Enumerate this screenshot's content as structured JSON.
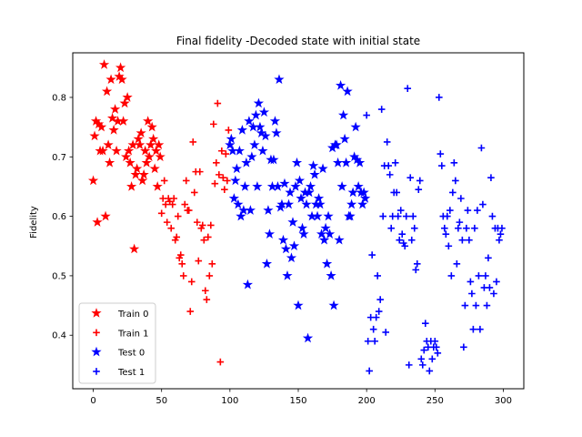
{
  "chart_data": {
    "type": "scatter",
    "title": "Final fidelity -Decoded state with initial state",
    "xlabel": "",
    "ylabel": "Fidelity",
    "xlim": [
      -15,
      315
    ],
    "ylim": [
      0.31,
      0.875
    ],
    "xticks": [
      0,
      50,
      100,
      150,
      200,
      250,
      300
    ],
    "yticks": [
      0.4,
      0.5,
      0.6,
      0.7,
      0.8
    ],
    "xtick_labels": [
      "0",
      "50",
      "100",
      "150",
      "200",
      "250",
      "300"
    ],
    "ytick_labels": [
      "0.4",
      "0.5",
      "0.6",
      "0.7",
      "0.8"
    ],
    "legend_position": "lower-left",
    "series": [
      {
        "name": "Train 0",
        "marker": "star",
        "color": "#ff0000",
        "points": [
          [
            0,
            0.66
          ],
          [
            1,
            0.735
          ],
          [
            2,
            0.76
          ],
          [
            3,
            0.59
          ],
          [
            4,
            0.755
          ],
          [
            5,
            0.71
          ],
          [
            6,
            0.75
          ],
          [
            7,
            0.71
          ],
          [
            8,
            0.855
          ],
          [
            9,
            0.6
          ],
          [
            10,
            0.81
          ],
          [
            11,
            0.72
          ],
          [
            12,
            0.69
          ],
          [
            13,
            0.83
          ],
          [
            14,
            0.765
          ],
          [
            15,
            0.745
          ],
          [
            16,
            0.78
          ],
          [
            17,
            0.71
          ],
          [
            18,
            0.76
          ],
          [
            19,
            0.835
          ],
          [
            20,
            0.85
          ],
          [
            21,
            0.83
          ],
          [
            22,
            0.76
          ],
          [
            23,
            0.79
          ],
          [
            24,
            0.7
          ],
          [
            25,
            0.8
          ],
          [
            26,
            0.71
          ],
          [
            27,
            0.69
          ],
          [
            28,
            0.65
          ],
          [
            29,
            0.72
          ],
          [
            30,
            0.545
          ],
          [
            31,
            0.67
          ],
          [
            32,
            0.68
          ],
          [
            33,
            0.73
          ],
          [
            34,
            0.72
          ],
          [
            35,
            0.74
          ],
          [
            36,
            0.66
          ],
          [
            37,
            0.67
          ],
          [
            38,
            0.71
          ],
          [
            39,
            0.69
          ],
          [
            40,
            0.76
          ],
          [
            41,
            0.7
          ],
          [
            42,
            0.72
          ],
          [
            43,
            0.75
          ],
          [
            44,
            0.73
          ],
          [
            45,
            0.68
          ],
          [
            46,
            0.71
          ],
          [
            47,
            0.65
          ],
          [
            48,
            0.72
          ],
          [
            49,
            0.7
          ]
        ]
      },
      {
        "name": "Train 1",
        "marker": "plus",
        "color": "#ff0000",
        "points": [
          [
            50,
            0.605
          ],
          [
            51,
            0.63
          ],
          [
            52,
            0.66
          ],
          [
            53,
            0.62
          ],
          [
            54,
            0.59
          ],
          [
            55,
            0.63
          ],
          [
            56,
            0.625
          ],
          [
            57,
            0.58
          ],
          [
            58,
            0.62
          ],
          [
            59,
            0.63
          ],
          [
            60,
            0.56
          ],
          [
            61,
            0.565
          ],
          [
            62,
            0.6
          ],
          [
            63,
            0.53
          ],
          [
            64,
            0.535
          ],
          [
            65,
            0.52
          ],
          [
            66,
            0.5
          ],
          [
            67,
            0.62
          ],
          [
            68,
            0.66
          ],
          [
            69,
            0.61
          ],
          [
            70,
            0.61
          ],
          [
            71,
            0.44
          ],
          [
            72,
            0.49
          ],
          [
            73,
            0.725
          ],
          [
            74,
            0.64
          ],
          [
            75,
            0.675
          ],
          [
            76,
            0.59
          ],
          [
            77,
            0.525
          ],
          [
            78,
            0.675
          ],
          [
            79,
            0.58
          ],
          [
            80,
            0.585
          ],
          [
            81,
            0.56
          ],
          [
            82,
            0.475
          ],
          [
            83,
            0.46
          ],
          [
            84,
            0.565
          ],
          [
            85,
            0.5
          ],
          [
            86,
            0.585
          ],
          [
            87,
            0.52
          ],
          [
            88,
            0.755
          ],
          [
            89,
            0.655
          ],
          [
            90,
            0.69
          ],
          [
            91,
            0.79
          ],
          [
            92,
            0.67
          ],
          [
            93,
            0.355
          ],
          [
            94,
            0.71
          ],
          [
            95,
            0.665
          ],
          [
            96,
            0.645
          ],
          [
            97,
            0.705
          ],
          [
            98,
            0.66
          ],
          [
            99,
            0.745
          ]
        ]
      },
      {
        "name": "Test 0",
        "marker": "star",
        "color": "#0000ff",
        "points": [
          [
            100,
            0.72
          ],
          [
            101,
            0.73
          ],
          [
            102,
            0.71
          ],
          [
            103,
            0.63
          ],
          [
            104,
            0.66
          ],
          [
            105,
            0.68
          ],
          [
            106,
            0.62
          ],
          [
            107,
            0.71
          ],
          [
            108,
            0.6
          ],
          [
            109,
            0.745
          ],
          [
            110,
            0.61
          ],
          [
            111,
            0.65
          ],
          [
            112,
            0.69
          ],
          [
            113,
            0.485
          ],
          [
            114,
            0.76
          ],
          [
            115,
            0.61
          ],
          [
            116,
            0.7
          ],
          [
            117,
            0.75
          ],
          [
            118,
            0.72
          ],
          [
            119,
            0.77
          ],
          [
            120,
            0.65
          ],
          [
            121,
            0.79
          ],
          [
            122,
            0.75
          ],
          [
            123,
            0.74
          ],
          [
            124,
            0.71
          ],
          [
            125,
            0.775
          ],
          [
            126,
            0.735
          ],
          [
            127,
            0.52
          ],
          [
            128,
            0.61
          ],
          [
            129,
            0.57
          ],
          [
            130,
            0.695
          ],
          [
            131,
            0.65
          ],
          [
            132,
            0.695
          ],
          [
            133,
            0.76
          ],
          [
            134,
            0.74
          ],
          [
            135,
            0.65
          ],
          [
            136,
            0.83
          ],
          [
            137,
            0.615
          ],
          [
            138,
            0.62
          ],
          [
            139,
            0.56
          ],
          [
            140,
            0.655
          ],
          [
            141,
            0.545
          ],
          [
            142,
            0.5
          ],
          [
            143,
            0.62
          ],
          [
            144,
            0.64
          ],
          [
            145,
            0.53
          ],
          [
            146,
            0.59
          ],
          [
            147,
            0.55
          ],
          [
            148,
            0.65
          ],
          [
            149,
            0.69
          ],
          [
            150,
            0.45
          ],
          [
            151,
            0.66
          ],
          [
            152,
            0.63
          ],
          [
            153,
            0.58
          ],
          [
            154,
            0.57
          ],
          [
            155,
            0.64
          ],
          [
            156,
            0.62
          ],
          [
            157,
            0.395
          ],
          [
            158,
            0.64
          ],
          [
            159,
            0.65
          ],
          [
            160,
            0.6
          ],
          [
            161,
            0.685
          ],
          [
            162,
            0.67
          ],
          [
            163,
            0.62
          ],
          [
            164,
            0.6
          ],
          [
            165,
            0.63
          ],
          [
            166,
            0.62
          ],
          [
            167,
            0.57
          ],
          [
            168,
            0.68
          ],
          [
            169,
            0.56
          ],
          [
            170,
            0.58
          ],
          [
            171,
            0.52
          ],
          [
            172,
            0.6
          ],
          [
            173,
            0.57
          ],
          [
            174,
            0.5
          ],
          [
            175,
            0.715
          ],
          [
            176,
            0.45
          ],
          [
            177,
            0.72
          ],
          [
            178,
            0.72
          ],
          [
            179,
            0.69
          ],
          [
            180,
            0.56
          ],
          [
            181,
            0.82
          ],
          [
            182,
            0.65
          ],
          [
            183,
            0.77
          ],
          [
            184,
            0.73
          ],
          [
            185,
            0.69
          ],
          [
            186,
            0.81
          ],
          [
            187,
            0.6
          ],
          [
            188,
            0.6
          ],
          [
            189,
            0.62
          ],
          [
            190,
            0.64
          ],
          [
            191,
            0.7
          ],
          [
            192,
            0.75
          ],
          [
            193,
            0.695
          ],
          [
            194,
            0.65
          ],
          [
            195,
            0.69
          ],
          [
            196,
            0.64
          ],
          [
            197,
            0.62
          ],
          [
            198,
            0.64
          ],
          [
            199,
            0.63
          ]
        ]
      },
      {
        "name": "Test 1",
        "marker": "plus",
        "color": "#0000ff",
        "points": [
          [
            200,
            0.77
          ],
          [
            201,
            0.39
          ],
          [
            202,
            0.34
          ],
          [
            203,
            0.43
          ],
          [
            204,
            0.535
          ],
          [
            205,
            0.41
          ],
          [
            206,
            0.39
          ],
          [
            207,
            0.43
          ],
          [
            208,
            0.5
          ],
          [
            209,
            0.44
          ],
          [
            210,
            0.46
          ],
          [
            211,
            0.78
          ],
          [
            212,
            0.6
          ],
          [
            213,
            0.685
          ],
          [
            214,
            0.405
          ],
          [
            215,
            0.725
          ],
          [
            216,
            0.685
          ],
          [
            217,
            0.67
          ],
          [
            218,
            0.58
          ],
          [
            219,
            0.6
          ],
          [
            220,
            0.64
          ],
          [
            221,
            0.69
          ],
          [
            222,
            0.64
          ],
          [
            223,
            0.6
          ],
          [
            224,
            0.56
          ],
          [
            225,
            0.61
          ],
          [
            226,
            0.57
          ],
          [
            227,
            0.555
          ],
          [
            228,
            0.55
          ],
          [
            229,
            0.6
          ],
          [
            230,
            0.815
          ],
          [
            231,
            0.35
          ],
          [
            232,
            0.665
          ],
          [
            233,
            0.56
          ],
          [
            234,
            0.6
          ],
          [
            235,
            0.58
          ],
          [
            236,
            0.51
          ],
          [
            237,
            0.52
          ],
          [
            238,
            0.645
          ],
          [
            239,
            0.66
          ],
          [
            240,
            0.36
          ],
          [
            241,
            0.35
          ],
          [
            242,
            0.375
          ],
          [
            243,
            0.42
          ],
          [
            244,
            0.39
          ],
          [
            245,
            0.38
          ],
          [
            246,
            0.34
          ],
          [
            247,
            0.39
          ],
          [
            248,
            0.36
          ],
          [
            249,
            0.38
          ],
          [
            250,
            0.39
          ],
          [
            251,
            0.38
          ],
          [
            252,
            0.37
          ],
          [
            253,
            0.8
          ],
          [
            254,
            0.705
          ],
          [
            255,
            0.685
          ],
          [
            256,
            0.6
          ],
          [
            257,
            0.58
          ],
          [
            258,
            0.57
          ],
          [
            259,
            0.6
          ],
          [
            260,
            0.55
          ],
          [
            261,
            0.61
          ],
          [
            262,
            0.5
          ],
          [
            263,
            0.64
          ],
          [
            264,
            0.69
          ],
          [
            265,
            0.66
          ],
          [
            266,
            0.52
          ],
          [
            267,
            0.58
          ],
          [
            268,
            0.59
          ],
          [
            269,
            0.63
          ],
          [
            270,
            0.56
          ],
          [
            271,
            0.38
          ],
          [
            272,
            0.45
          ],
          [
            273,
            0.58
          ],
          [
            274,
            0.61
          ],
          [
            275,
            0.56
          ],
          [
            276,
            0.49
          ],
          [
            277,
            0.47
          ],
          [
            278,
            0.41
          ],
          [
            279,
            0.58
          ],
          [
            280,
            0.45
          ],
          [
            281,
            0.61
          ],
          [
            282,
            0.5
          ],
          [
            283,
            0.41
          ],
          [
            284,
            0.715
          ],
          [
            285,
            0.62
          ],
          [
            286,
            0.48
          ],
          [
            287,
            0.5
          ],
          [
            288,
            0.45
          ],
          [
            289,
            0.53
          ],
          [
            290,
            0.48
          ],
          [
            291,
            0.665
          ],
          [
            292,
            0.6
          ],
          [
            293,
            0.47
          ],
          [
            294,
            0.58
          ],
          [
            295,
            0.49
          ],
          [
            296,
            0.58
          ],
          [
            297,
            0.56
          ],
          [
            298,
            0.57
          ],
          [
            299,
            0.58
          ]
        ]
      }
    ]
  }
}
